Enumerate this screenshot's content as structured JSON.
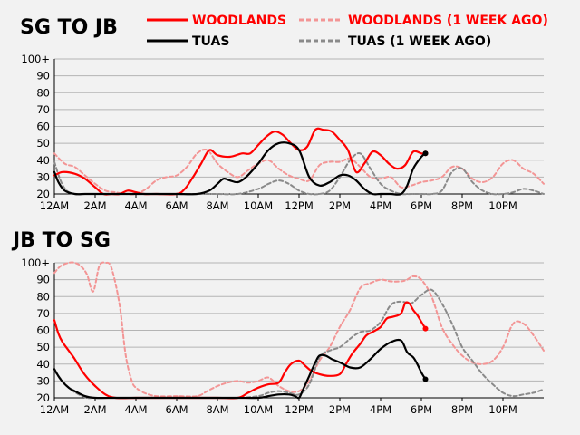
{
  "chart_data": [
    {
      "type": "line",
      "title": "SG TO JB",
      "x_ticks": [
        "12AM",
        "2AM",
        "4AM",
        "6AM",
        "8AM",
        "10AM",
        "12PM",
        "2PM",
        "4PM",
        "6PM",
        "8PM",
        "10PM"
      ],
      "y_ticks": [
        "20",
        "30",
        "40",
        "50",
        "60",
        "70",
        "80",
        "90",
        "100+"
      ],
      "xlim": [
        0,
        24
      ],
      "ylim": [
        20,
        100
      ],
      "grid": true,
      "series": [
        {
          "name": "WOODLANDS",
          "color": "#ff0000",
          "style": "solid",
          "x": [
            0,
            0.4,
            1,
            1.5,
            2,
            2.4,
            2.8,
            3.2,
            3.6,
            4,
            4.4,
            5,
            6,
            6.4,
            6.8,
            7.2,
            7.6,
            8,
            8.6,
            9.2,
            9.6,
            10,
            10.4,
            10.8,
            11.2,
            11.6,
            12,
            12.4,
            12.8,
            13.2,
            13.6,
            14,
            14.4,
            14.8,
            15.2,
            15.6,
            16,
            16.4,
            16.8,
            17.2,
            17.6,
            18,
            18.2
          ],
          "y": [
            31,
            33,
            32,
            29,
            24,
            20,
            20,
            20,
            22,
            21,
            20,
            20,
            20,
            23,
            30,
            38,
            46,
            43,
            42,
            44,
            44,
            49,
            54,
            57,
            55,
            50,
            46,
            48,
            58,
            58,
            57,
            52,
            46,
            33,
            38,
            45,
            43,
            38,
            35,
            37,
            45,
            44,
            44
          ]
        },
        {
          "name": "WOODLANDS (1 WEEK AGO)",
          "color": "#f39595",
          "style": "dashed",
          "x": [
            0,
            0.5,
            1,
            1.5,
            2,
            2.5,
            3,
            3.5,
            4,
            4.5,
            5,
            5.5,
            6,
            6.5,
            7,
            7.5,
            8,
            8.5,
            9,
            9.5,
            10,
            10.5,
            11,
            11.5,
            12,
            12.5,
            13,
            13.5,
            14,
            14.5,
            15,
            15.5,
            16,
            16.5,
            17,
            17.5,
            18,
            18.5,
            19,
            19.5,
            20,
            20.5,
            21,
            21.5,
            22,
            22.5,
            23,
            23.5,
            24
          ],
          "y": [
            44,
            38,
            36,
            31,
            26,
            22,
            21,
            20,
            20,
            23,
            28,
            30,
            31,
            36,
            44,
            46,
            38,
            33,
            30,
            34,
            38,
            40,
            35,
            31,
            29,
            28,
            37,
            39,
            39,
            41,
            36,
            30,
            29,
            30,
            24,
            25,
            27,
            28,
            30,
            36,
            35,
            29,
            27,
            30,
            38,
            40,
            35,
            32,
            26
          ]
        },
        {
          "name": "TUAS",
          "color": "#000000",
          "style": "solid",
          "x": [
            0,
            0.2,
            0.5,
            1,
            1.5,
            2,
            3,
            4,
            5,
            6,
            7,
            7.6,
            8,
            8.3,
            8.6,
            9,
            9.4,
            10,
            10.5,
            11,
            11.5,
            12,
            12.5,
            13,
            13.5,
            14,
            14.4,
            14.8,
            15.2,
            15.6,
            16,
            16.5,
            17,
            17.3,
            17.6,
            18,
            18.2
          ],
          "y": [
            33,
            27,
            22,
            20,
            20,
            20,
            20,
            20,
            20,
            20,
            20,
            22,
            26,
            29,
            28,
            27,
            30,
            38,
            46,
            50,
            50,
            46,
            30,
            25,
            27,
            31,
            31,
            28,
            23,
            20,
            20,
            20,
            20,
            25,
            35,
            42,
            44
          ]
        },
        {
          "name": "TUAS (1 WEEK AGO)",
          "color": "#8a8a8a",
          "style": "dashed",
          "x": [
            0,
            0.3,
            0.6,
            1,
            1.5,
            2,
            3,
            4,
            5,
            6,
            7,
            8,
            9,
            10,
            10.5,
            11,
            11.5,
            12,
            12.5,
            13,
            13.5,
            14,
            14.5,
            15,
            15.5,
            16,
            16.5,
            17,
            17.5,
            18,
            18.5,
            19,
            19.5,
            20,
            20.5,
            21,
            21.5,
            22,
            22.5,
            23,
            23.5,
            24
          ],
          "y": [
            39,
            28,
            22,
            20,
            20,
            20,
            20,
            20,
            20,
            20,
            20,
            20,
            20,
            23,
            26,
            28,
            26,
            22,
            20,
            20,
            22,
            30,
            40,
            44,
            35,
            26,
            22,
            20,
            20,
            20,
            20,
            22,
            33,
            35,
            27,
            22,
            20,
            20,
            21,
            23,
            22,
            20
          ]
        }
      ]
    },
    {
      "type": "line",
      "title": "JB TO SG",
      "x_ticks": [
        "12AM",
        "2AM",
        "4AM",
        "6AM",
        "8AM",
        "10AM",
        "12PM",
        "2PM",
        "4PM",
        "6PM",
        "8PM",
        "10PM"
      ],
      "y_ticks": [
        "20",
        "30",
        "40",
        "50",
        "60",
        "70",
        "80",
        "90",
        "100+"
      ],
      "xlim": [
        0,
        24
      ],
      "ylim": [
        20,
        100
      ],
      "grid": true,
      "series": [
        {
          "name": "WOODLANDS",
          "color": "#ff0000",
          "style": "solid",
          "x": [
            0,
            0.2,
            0.4,
            0.7,
            1,
            1.3,
            1.6,
            2,
            2.5,
            3,
            4,
            5,
            6,
            7,
            8,
            9,
            9.5,
            10,
            10.5,
            11,
            11.3,
            11.6,
            12,
            12.3,
            12.6,
            13,
            13.5,
            14,
            14.3,
            14.6,
            15,
            15.3,
            15.6,
            16,
            16.3,
            16.6,
            17,
            17.2,
            17.4,
            17.6,
            17.8,
            18,
            18.2
          ],
          "y": [
            66,
            58,
            53,
            48,
            43,
            37,
            32,
            27,
            22,
            20,
            20,
            20,
            20,
            20,
            20,
            20,
            23,
            26,
            28,
            29,
            35,
            40,
            42,
            39,
            36,
            34,
            33,
            34,
            40,
            46,
            52,
            57,
            59,
            62,
            67,
            68,
            70,
            76,
            76,
            72,
            69,
            65,
            61
          ]
        },
        {
          "name": "WOODLANDS (1 WEEK AGO)",
          "color": "#f39595",
          "style": "dashed",
          "x": [
            0,
            0.3,
            0.7,
            1,
            1.3,
            1.6,
            1.9,
            2.2,
            2.5,
            2.8,
            3.2,
            3.5,
            3.8,
            4,
            4.4,
            5,
            6,
            7,
            7.5,
            8,
            8.5,
            9,
            9.5,
            10,
            10.5,
            11,
            11.5,
            12,
            12.5,
            13,
            13.5,
            14,
            14.5,
            15,
            15.5,
            16,
            16.5,
            17,
            17.3,
            17.6,
            18,
            18.5,
            19,
            19.5,
            20,
            20.5,
            21,
            21.5,
            22,
            22.5,
            23,
            23.5,
            24
          ],
          "y": [
            94,
            98,
            100,
            100,
            98,
            93,
            83,
            98,
            100,
            97,
            75,
            45,
            30,
            26,
            23,
            21,
            21,
            21,
            24,
            27,
            29,
            30,
            29,
            30,
            32,
            27,
            24,
            24,
            30,
            42,
            50,
            62,
            72,
            85,
            88,
            90,
            89,
            89,
            90,
            92,
            90,
            80,
            62,
            52,
            45,
            41,
            40,
            42,
            50,
            64,
            64,
            57,
            48
          ]
        },
        {
          "name": "TUAS",
          "color": "#000000",
          "style": "solid",
          "x": [
            0,
            0.3,
            0.7,
            1,
            1.5,
            2,
            3,
            4,
            5,
            6,
            7,
            8,
            9,
            10,
            10.5,
            11,
            11.5,
            11.8,
            12,
            12.2,
            12.5,
            12.8,
            13,
            13.3,
            13.6,
            14,
            14.5,
            15,
            15.5,
            16,
            16.5,
            17,
            17.3,
            17.6,
            17.8,
            18,
            18.2
          ],
          "y": [
            37,
            31,
            26,
            24,
            21,
            20,
            20,
            20,
            20,
            20,
            20,
            20,
            20,
            20,
            21,
            22,
            22,
            21,
            20,
            25,
            33,
            41,
            45,
            45,
            43,
            41,
            38,
            38,
            43,
            49,
            53,
            54,
            47,
            44,
            40,
            35,
            31
          ]
        },
        {
          "name": "TUAS (1 WEEK AGO)",
          "color": "#8a8a8a",
          "style": "dashed",
          "x": [
            0,
            0.4,
            0.8,
            1.2,
            1.6,
            2,
            3,
            4,
            5,
            6,
            7,
            8,
            9,
            10,
            10.5,
            11,
            11.5,
            12,
            12.5,
            13,
            13.5,
            14,
            14.5,
            15,
            15.5,
            16,
            16.5,
            17,
            17.5,
            18,
            18.5,
            19,
            19.5,
            20,
            20.5,
            21,
            21.5,
            22,
            22.5,
            23,
            23.5,
            24
          ],
          "y": [
            36,
            30,
            25,
            22,
            20,
            20,
            20,
            20,
            20,
            20,
            20,
            20,
            20,
            21,
            23,
            24,
            23,
            22,
            28,
            44,
            48,
            50,
            55,
            59,
            60,
            65,
            75,
            77,
            76,
            81,
            84,
            76,
            64,
            50,
            42,
            34,
            28,
            23,
            21,
            22,
            23,
            25
          ]
        }
      ]
    }
  ]
}
